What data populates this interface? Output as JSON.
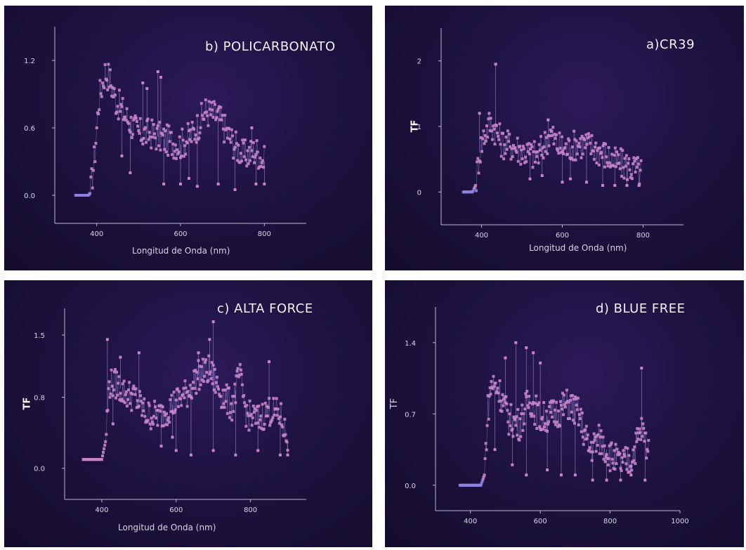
{
  "chart_data": [
    {
      "id": "policarbonato",
      "type": "scatter",
      "title": "b) POLICARBONATO",
      "xlabel": "Longitud de Onda (nm)",
      "ylabel": "",
      "xlim": [
        300,
        900
      ],
      "ylim": [
        -0.25,
        1.5
      ],
      "xticks": [
        400,
        600,
        800
      ],
      "yticks": [
        0.0,
        0.6,
        1.2
      ],
      "ytick_labels": [
        "0.0",
        "0.6",
        "1.2"
      ],
      "x_start": 350,
      "x_end": 800,
      "profile": [
        [
          350,
          0.0
        ],
        [
          380,
          0.0
        ],
        [
          385,
          0.02
        ],
        [
          395,
          0.35
        ],
        [
          405,
          0.85
        ],
        [
          420,
          1.1
        ],
        [
          430,
          1.05
        ],
        [
          445,
          0.85
        ],
        [
          470,
          0.7
        ],
        [
          500,
          0.55
        ],
        [
          530,
          0.55
        ],
        [
          560,
          0.5
        ],
        [
          600,
          0.45
        ],
        [
          630,
          0.55
        ],
        [
          660,
          0.75
        ],
        [
          690,
          0.7
        ],
        [
          720,
          0.5
        ],
        [
          750,
          0.35
        ],
        [
          780,
          0.4
        ],
        [
          800,
          0.3
        ]
      ],
      "outliers": [
        [
          546,
          1.1
        ],
        [
          553,
          1.05
        ],
        [
          520,
          0.95
        ],
        [
          510,
          1.0
        ],
        [
          560,
          0.1
        ],
        [
          600,
          0.1
        ],
        [
          620,
          0.15
        ],
        [
          640,
          0.08
        ],
        [
          690,
          0.1
        ],
        [
          730,
          0.05
        ],
        [
          770,
          0.6
        ],
        [
          780,
          0.1
        ],
        [
          800,
          0.1
        ],
        [
          480,
          0.2
        ],
        [
          460,
          0.35
        ]
      ]
    },
    {
      "id": "cr39",
      "type": "scatter",
      "title": "a)CR39",
      "xlabel": "Longitud de Onda (nm)",
      "ylabel": "TF",
      "xlim": [
        300,
        900
      ],
      "ylim": [
        -0.5,
        2.5
      ],
      "xticks": [
        400,
        600,
        800
      ],
      "yticks": [
        0,
        1,
        2
      ],
      "ytick_labels": [
        "0",
        "1",
        "2"
      ],
      "x_start": 355,
      "x_end": 795,
      "profile": [
        [
          355,
          0.0
        ],
        [
          378,
          0.0
        ],
        [
          385,
          0.1
        ],
        [
          395,
          0.6
        ],
        [
          405,
          0.85
        ],
        [
          420,
          1.05
        ],
        [
          435,
          0.95
        ],
        [
          450,
          0.75
        ],
        [
          480,
          0.7
        ],
        [
          510,
          0.6
        ],
        [
          540,
          0.55
        ],
        [
          570,
          0.9
        ],
        [
          590,
          0.7
        ],
        [
          610,
          0.65
        ],
        [
          640,
          0.75
        ],
        [
          670,
          0.7
        ],
        [
          700,
          0.6
        ],
        [
          730,
          0.45
        ],
        [
          760,
          0.4
        ],
        [
          795,
          0.3
        ]
      ],
      "outliers": [
        [
          435,
          1.95
        ],
        [
          395,
          1.2
        ],
        [
          565,
          1.1
        ],
        [
          520,
          0.2
        ],
        [
          550,
          0.25
        ],
        [
          620,
          0.2
        ],
        [
          660,
          0.15
        ],
        [
          700,
          0.1
        ],
        [
          730,
          0.1
        ],
        [
          760,
          0.1
        ],
        [
          790,
          0.1
        ],
        [
          600,
          0.15
        ]
      ]
    },
    {
      "id": "alta_force",
      "type": "scatter",
      "title": "c) ALTA FORCE",
      "xlabel": "Longitud de Onda (nm)",
      "ylabel": "TF",
      "xlim": [
        300,
        950
      ],
      "ylim": [
        -0.35,
        1.8
      ],
      "xticks": [
        400,
        600,
        800
      ],
      "yticks": [
        0.0,
        0.8,
        1.5
      ],
      "ytick_labels": [
        "0.0",
        "0.8",
        "1.5"
      ],
      "x_start": 350,
      "x_end": 900,
      "profile": [
        [
          350,
          0.1
        ],
        [
          400,
          0.1
        ],
        [
          410,
          0.3
        ],
        [
          420,
          0.95
        ],
        [
          440,
          0.95
        ],
        [
          460,
          0.85
        ],
        [
          490,
          0.8
        ],
        [
          520,
          0.6
        ],
        [
          560,
          0.6
        ],
        [
          600,
          0.75
        ],
        [
          630,
          0.85
        ],
        [
          660,
          1.05
        ],
        [
          690,
          1.1
        ],
        [
          720,
          0.85
        ],
        [
          750,
          0.7
        ],
        [
          770,
          1.05
        ],
        [
          790,
          0.6
        ],
        [
          820,
          0.55
        ],
        [
          850,
          0.65
        ],
        [
          880,
          0.6
        ],
        [
          900,
          0.3
        ]
      ],
      "outliers": [
        [
          415,
          1.45
        ],
        [
          700,
          1.65
        ],
        [
          690,
          1.45
        ],
        [
          450,
          1.25
        ],
        [
          500,
          1.3
        ],
        [
          660,
          1.3
        ],
        [
          850,
          1.2
        ],
        [
          430,
          0.5
        ],
        [
          560,
          0.25
        ],
        [
          600,
          0.2
        ],
        [
          640,
          0.15
        ],
        [
          700,
          0.2
        ],
        [
          760,
          0.15
        ],
        [
          820,
          0.2
        ],
        [
          880,
          0.15
        ],
        [
          900,
          0.15
        ],
        [
          590,
          0.35
        ]
      ]
    },
    {
      "id": "blue_free",
      "type": "scatter",
      "title": "d) BLUE FREE",
      "xlabel": "",
      "ylabel": "TF",
      "xlim": [
        300,
        1000
      ],
      "ylim": [
        -0.25,
        1.75
      ],
      "xticks": [
        400,
        600,
        800,
        1000
      ],
      "yticks": [
        0.0,
        0.7,
        1.4
      ],
      "ytick_labels": [
        "0.0",
        "0.7",
        "1.4"
      ],
      "x_start": 370,
      "x_end": 910,
      "profile": [
        [
          370,
          0.0
        ],
        [
          430,
          0.0
        ],
        [
          440,
          0.1
        ],
        [
          450,
          0.75
        ],
        [
          460,
          1.0
        ],
        [
          480,
          0.95
        ],
        [
          510,
          0.65
        ],
        [
          540,
          0.6
        ],
        [
          570,
          0.85
        ],
        [
          600,
          0.65
        ],
        [
          640,
          0.7
        ],
        [
          680,
          0.8
        ],
        [
          710,
          0.7
        ],
        [
          740,
          0.35
        ],
        [
          770,
          0.45
        ],
        [
          800,
          0.3
        ],
        [
          830,
          0.2
        ],
        [
          860,
          0.25
        ],
        [
          890,
          0.55
        ],
        [
          910,
          0.35
        ]
      ],
      "outliers": [
        [
          530,
          1.4
        ],
        [
          560,
          1.35
        ],
        [
          580,
          1.3
        ],
        [
          600,
          1.2
        ],
        [
          500,
          1.25
        ],
        [
          890,
          1.15
        ],
        [
          470,
          0.35
        ],
        [
          520,
          0.2
        ],
        [
          560,
          0.1
        ],
        [
          620,
          0.15
        ],
        [
          660,
          0.1
        ],
        [
          700,
          0.1
        ],
        [
          750,
          0.05
        ],
        [
          790,
          0.05
        ],
        [
          830,
          0.05
        ],
        [
          860,
          0.1
        ],
        [
          900,
          0.05
        ]
      ]
    }
  ]
}
